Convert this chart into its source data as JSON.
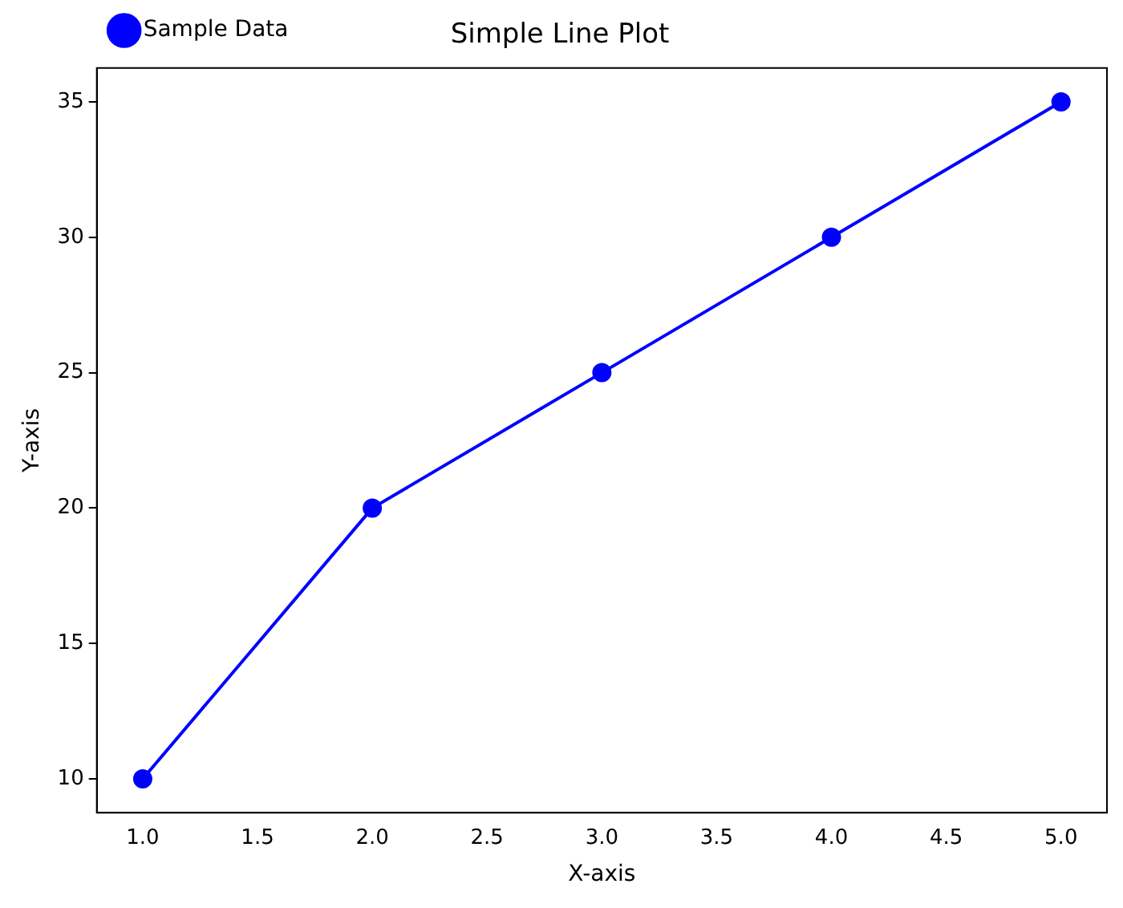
{
  "chart_data": {
    "type": "line",
    "title": "Simple Line Plot",
    "xlabel": "X-axis",
    "ylabel": "Y-axis",
    "x": [
      1,
      2,
      3,
      4,
      5
    ],
    "series": [
      {
        "name": "Sample Data",
        "color": "#0000ff",
        "values": [
          10,
          20,
          25,
          30,
          35
        ]
      }
    ],
    "xlim": [
      0.8,
      5.2
    ],
    "ylim": [
      8.75,
      36.25
    ],
    "xticks": [
      {
        "value": 1,
        "label": "1.0"
      },
      {
        "value": 1.5,
        "label": "1.5"
      },
      {
        "value": 2,
        "label": "2.0"
      },
      {
        "value": 2.5,
        "label": "2.5"
      },
      {
        "value": 3,
        "label": "3.0"
      },
      {
        "value": 3.5,
        "label": "3.5"
      },
      {
        "value": 4,
        "label": "4.0"
      },
      {
        "value": 4.5,
        "label": "4.5"
      },
      {
        "value": 5,
        "label": "5.0"
      }
    ],
    "yticks": [
      10,
      15,
      20,
      25,
      30,
      35
    ],
    "grid": false,
    "legend": "top left",
    "marker": "circle",
    "line_style": "solid"
  }
}
